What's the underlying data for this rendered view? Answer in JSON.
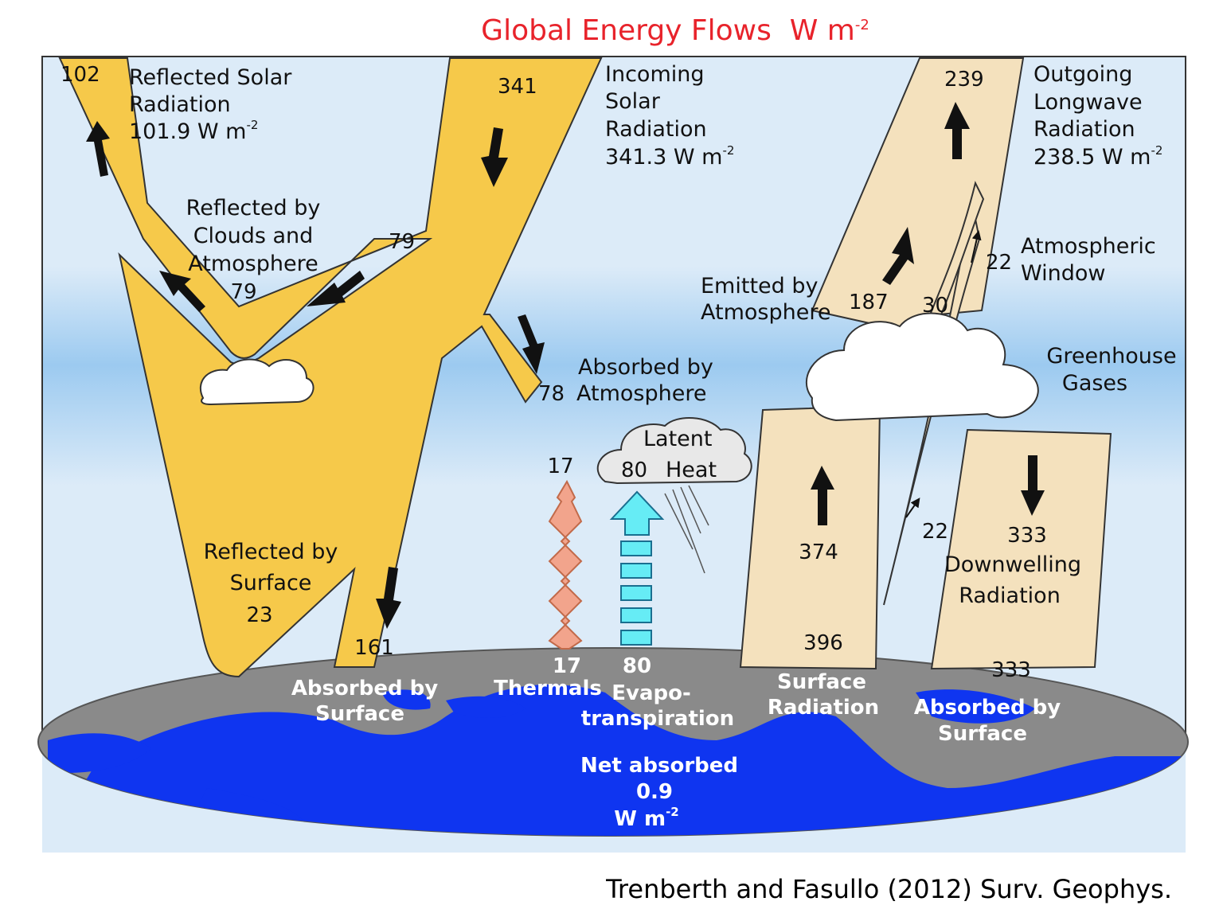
{
  "title": {
    "text": "Global Energy Flows",
    "unit": "W m",
    "unit_exp": "-2"
  },
  "citation": "Trenberth and Fasullo (2012) Surv. Geophys.",
  "colors": {
    "solar": "#f6c94a",
    "longwave": "#f4e1bd",
    "sky": "#dcebf8",
    "atmosphere_band": "#9ccaf0",
    "ocean": "#0f35f0",
    "land": "#8a8a8a",
    "thermals": "#f2a48c",
    "evapotranspiration": "#66ecf5",
    "title": "#e8232b"
  },
  "labels": {
    "reflected_solar_value": "102",
    "reflected_solar_l1": "Reflected Solar",
    "reflected_solar_l2": "Radiation",
    "reflected_solar_l3": "101.9 W m",
    "incoming_value": "341",
    "incoming_l1": "Incoming",
    "incoming_l2": "Solar",
    "incoming_l3": "Radiation",
    "incoming_l4": "341.3 W m",
    "outgoing_value": "239",
    "outgoing_l1": "Outgoing",
    "outgoing_l2": "Longwave",
    "outgoing_l3": "Radiation",
    "outgoing_l4": "238.5 W m",
    "clouds_l1": "Reflected by",
    "clouds_l2": "Clouds and",
    "clouds_l3": "Atmosphere",
    "clouds_value": "79",
    "clouds_band_value": "79",
    "atm_window_value": "22",
    "atm_window_l1": "Atmospheric",
    "atm_window_l2": "Window",
    "emitted_l1": "Emitted by",
    "emitted_l2": "Atmosphere",
    "emitted_value": "187",
    "emitted_cloud_value": "30",
    "greenhouse_l1": "Greenhouse",
    "greenhouse_l2": "Gases",
    "absorbed_atm_value": "78",
    "absorbed_atm_l1": "Absorbed by",
    "absorbed_atm_l2": "Atmosphere",
    "latent_l1": "Latent",
    "latent_value": "80",
    "latent_l2": "Heat",
    "thermals_top_value": "17",
    "surface_rad_value": "374",
    "window_low_value": "22",
    "downwelling_value": "333",
    "downwelling_label": "Downwelling",
    "downwelling_l2": "Radiation",
    "reflected_surface_l1": "Reflected by",
    "reflected_surface_l2": "Surface",
    "reflected_surface_value": "23",
    "absorbed_surface_value": "161",
    "surface_rad_bottom_value": "396",
    "absorbed_surface_right_value": "333",
    "earth_absorbed_l1": "Absorbed by",
    "earth_absorbed_l2": "Surface",
    "thermals_value": "17",
    "thermals_label": "Thermals",
    "evapo_value": "80",
    "evapo_l1": "Evapo-",
    "evapo_l2": "transpiration",
    "surface_radiation_l1": "Surface",
    "surface_radiation_l2": "Radiation",
    "earth_absorbed_right_l1": "Absorbed by",
    "earth_absorbed_right_l2": "Surface",
    "net_l1": "Net absorbed",
    "net_l2": "0.9",
    "net_l3": "W m",
    "unit_exp": "-2"
  }
}
